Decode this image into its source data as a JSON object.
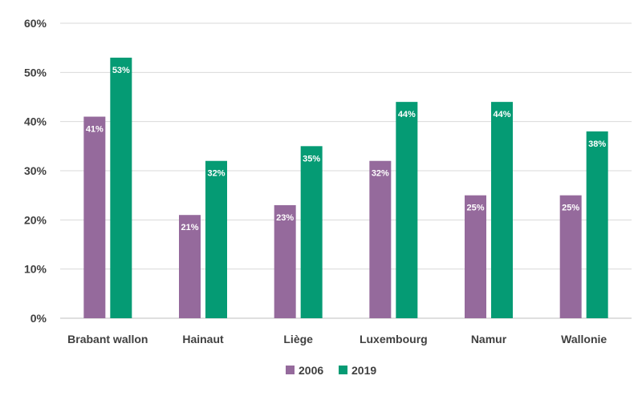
{
  "chart_data": {
    "type": "bar",
    "title": "",
    "xlabel": "",
    "ylabel": "",
    "categories": [
      "Brabant wallon",
      "Hainaut",
      "Liège",
      "Luxembourg",
      "Namur",
      "Wallonie"
    ],
    "series": [
      {
        "name": "2006",
        "color": "#956a9c",
        "values": [
          41,
          21,
          23,
          32,
          25,
          25
        ],
        "labels": [
          "41%",
          "21%",
          "23%",
          "32%",
          "25%",
          "25%"
        ]
      },
      {
        "name": "2019",
        "color": "#059b74",
        "values": [
          53,
          32,
          35,
          44,
          44,
          38
        ],
        "labels": [
          "53%",
          "32%",
          "35%",
          "44%",
          "44%",
          "38%"
        ]
      }
    ],
    "ylim": [
      0,
      60
    ],
    "yticks": [
      0,
      10,
      20,
      30,
      40,
      50,
      60
    ],
    "ytick_labels": [
      "0%",
      "10%",
      "20%",
      "30%",
      "40%",
      "50%",
      "60%"
    ],
    "grid": true,
    "legend": "bottom-center"
  }
}
